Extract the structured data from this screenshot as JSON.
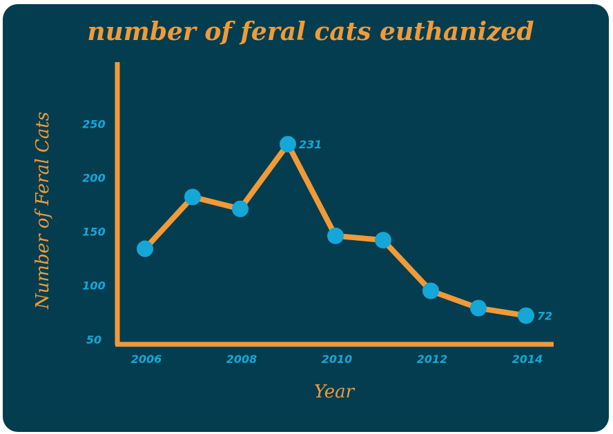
{
  "chart_data": {
    "type": "line",
    "title": "number of feral cats euthanized",
    "xlabel": "Year",
    "ylabel": "Number of Feral Cats",
    "x": [
      2006,
      2007,
      2008,
      2009,
      2010,
      2011,
      2012,
      2013,
      2014
    ],
    "series": [
      {
        "values": [
          134,
          182,
          171,
          231,
          146,
          142,
          95,
          79,
          72
        ]
      }
    ],
    "x_tick_labels": [
      "2006",
      "2008",
      "2010",
      "2012",
      "2014"
    ],
    "y_tick_labels": [
      "250",
      "200",
      "150",
      "100",
      "50"
    ],
    "data_labels": [
      {
        "x": 2009,
        "text": "231"
      },
      {
        "x": 2014,
        "text": "72"
      }
    ],
    "xlim": [
      2006,
      2014
    ],
    "ylim": [
      0,
      250
    ],
    "grid": false,
    "legend": "none",
    "colors": {
      "background": "#033d4f",
      "line": "#f29a38",
      "marker": "#14a7d8",
      "title": "#f29a38",
      "tick_labels": "#14a7d8"
    }
  }
}
